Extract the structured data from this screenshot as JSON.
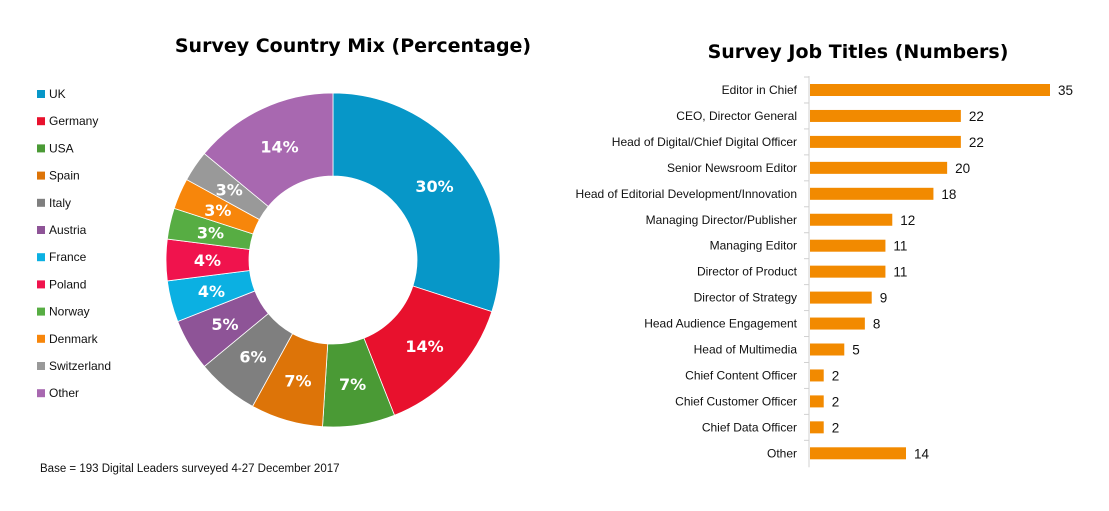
{
  "chart_data": [
    {
      "type": "pie",
      "variant": "donut",
      "title": "Survey Country Mix (Percentage)",
      "categories": [
        "UK",
        "Germany",
        "USA",
        "Spain",
        "Italy",
        "Austria",
        "France",
        "Poland",
        "Norway",
        "Denmark",
        "Switzerland",
        "Other"
      ],
      "values": [
        30,
        14,
        7,
        7,
        6,
        5,
        4,
        4,
        3,
        3,
        3,
        14
      ],
      "data_labels": [
        "30%",
        "14%",
        "7%",
        "7%",
        "6%",
        "5%",
        "4%",
        "4%",
        "3%",
        "3%",
        "3%",
        "14%"
      ],
      "colors": [
        "#0797c8",
        "#e8112d",
        "#4a9a35",
        "#dd7408",
        "#7f7f7f",
        "#8e5497",
        "#0bb0e2",
        "#f0134d",
        "#57ad43",
        "#f7860b",
        "#999999",
        "#a868b0"
      ],
      "legend_position": "left",
      "footnote": "Base = 193 Digital Leaders surveyed 4-27 December 2017"
    },
    {
      "type": "bar",
      "orientation": "horizontal",
      "title": "Survey Job Titles (Numbers)",
      "categories": [
        "Editor in Chief",
        "CEO, Director General",
        "Head of Digital/Chief Digital Officer",
        "Senior Newsroom Editor",
        "Head of Editorial Development/Innovation",
        "Managing Director/Publisher",
        "Managing Editor",
        "Director of Product",
        "Director of Strategy",
        "Head Audience Engagement",
        "Head of Multimedia",
        "Chief Content Officer",
        "Chief Customer Officer",
        "Chief Data Officer",
        "Other"
      ],
      "values": [
        35,
        22,
        22,
        20,
        18,
        12,
        11,
        11,
        9,
        8,
        5,
        2,
        2,
        2,
        14
      ],
      "color": "#f28a00",
      "grid": false
    }
  ]
}
